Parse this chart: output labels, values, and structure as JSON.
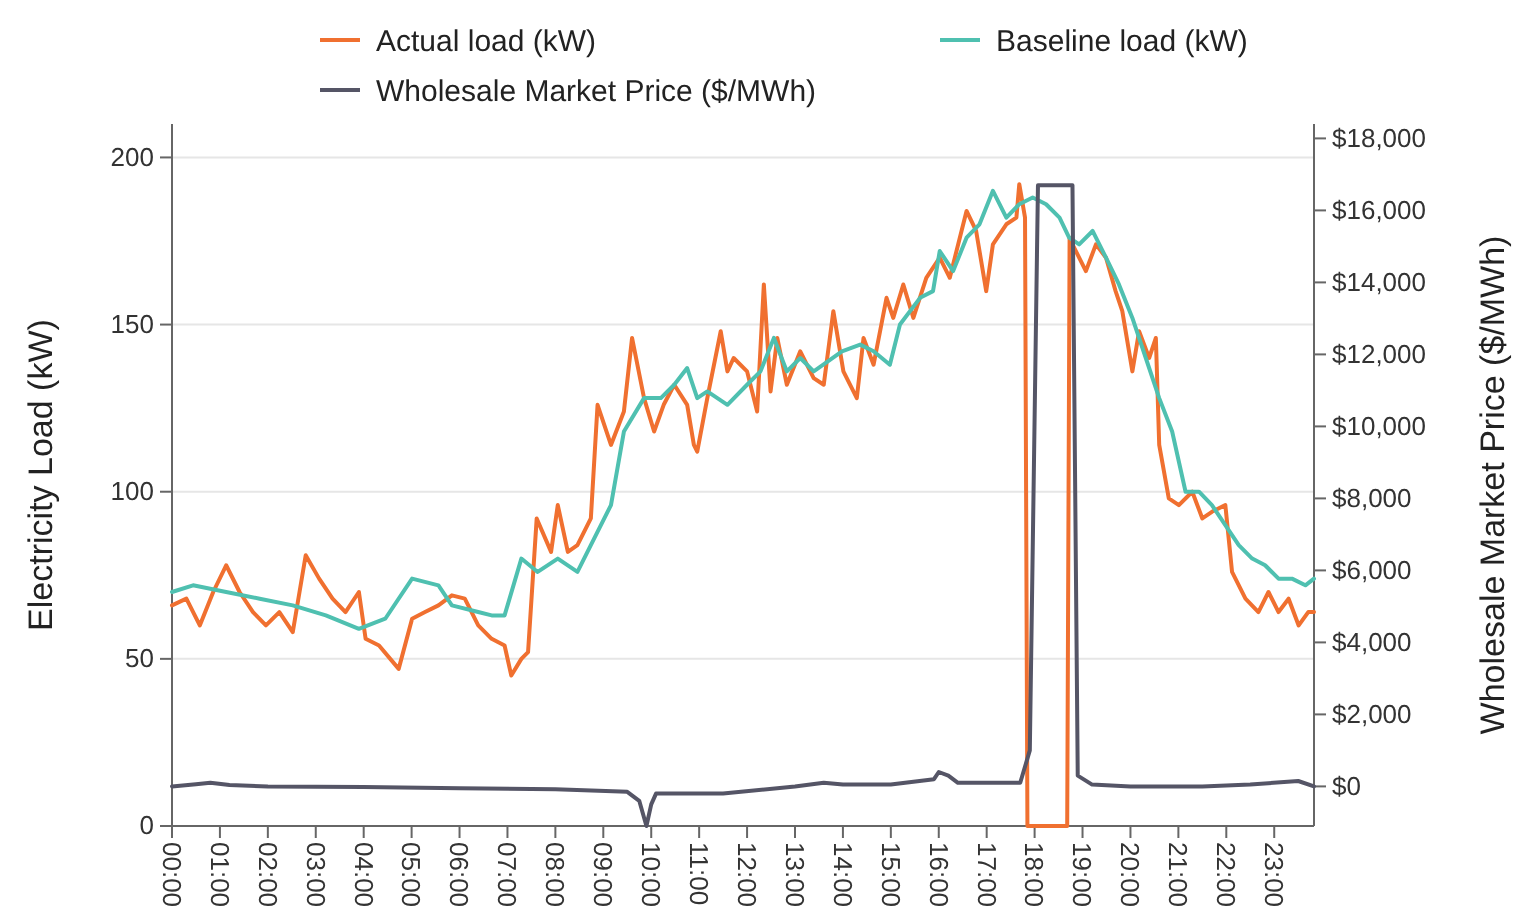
{
  "chart_data": {
    "type": "line",
    "ylabel": "Electricity Load (kW)",
    "y2label": "Wholesale Market Price ($/MWh)",
    "xlim": [
      0,
      23.83
    ],
    "xticks": [
      {
        "value": 0,
        "label": "00:00"
      },
      {
        "value": 1,
        "label": "01:00"
      },
      {
        "value": 2,
        "label": "02:00"
      },
      {
        "value": 3,
        "label": "03:00"
      },
      {
        "value": 4,
        "label": "04:00"
      },
      {
        "value": 5,
        "label": "05:00"
      },
      {
        "value": 6,
        "label": "06:00"
      },
      {
        "value": 7,
        "label": "07:00"
      },
      {
        "value": 8,
        "label": "08:00"
      },
      {
        "value": 9,
        "label": "09:00"
      },
      {
        "value": 10,
        "label": "10:00"
      },
      {
        "value": 11,
        "label": "11:00"
      },
      {
        "value": 12,
        "label": "12:00"
      },
      {
        "value": 13,
        "label": "13:00"
      },
      {
        "value": 14,
        "label": "14:00"
      },
      {
        "value": 15,
        "label": "15:00"
      },
      {
        "value": 16,
        "label": "16:00"
      },
      {
        "value": 17,
        "label": "17:00"
      },
      {
        "value": 18,
        "label": "18:00"
      },
      {
        "value": 19,
        "label": "19:00"
      },
      {
        "value": 20,
        "label": "20:00"
      },
      {
        "value": 21,
        "label": "21:00"
      },
      {
        "value": 22,
        "label": "22:00"
      },
      {
        "value": 23,
        "label": "23:00"
      }
    ],
    "ylim": [
      0,
      210
    ],
    "yticks": [
      0,
      50,
      100,
      150,
      200
    ],
    "y2lim": [
      -1100,
      18400
    ],
    "y2ticks": [
      {
        "value": 0,
        "label": "$0"
      },
      {
        "value": 2000,
        "label": "$2,000"
      },
      {
        "value": 4000,
        "label": "$4,000"
      },
      {
        "value": 6000,
        "label": "$6,000"
      },
      {
        "value": 8000,
        "label": "$8,000"
      },
      {
        "value": 10000,
        "label": "$10,000"
      },
      {
        "value": 12000,
        "label": "$12,000"
      },
      {
        "value": 14000,
        "label": "$14,000"
      },
      {
        "value": 16000,
        "label": "$16,000"
      },
      {
        "value": 18000,
        "label": "$18,000"
      }
    ],
    "grid": "y",
    "legend": "top",
    "line_style": "solid",
    "marker": "none",
    "series": [
      {
        "name": "Actual load (kW)",
        "color": "#f07030",
        "x": [
          0,
          0.3,
          0.58,
          0.86,
          1.13,
          1.41,
          1.69,
          1.96,
          2.24,
          2.52,
          2.79,
          3.07,
          3.35,
          3.62,
          3.9,
          4.04,
          4.32,
          4.73,
          5.01,
          5.28,
          5.56,
          5.84,
          6.11,
          6.39,
          6.67,
          6.94,
          7.08,
          7.29,
          7.43,
          7.61,
          7.91,
          8.05,
          8.26,
          8.46,
          8.74,
          8.88,
          9.16,
          9.43,
          9.6,
          9.85,
          10.06,
          10.26,
          10.48,
          10.75,
          10.89,
          10.96,
          11.17,
          11.45,
          11.59,
          11.72,
          12.0,
          12.21,
          12.35,
          12.49,
          12.63,
          12.83,
          13.11,
          13.39,
          13.6,
          13.8,
          14.01,
          14.29,
          14.43,
          14.64,
          14.91,
          15.05,
          15.26,
          15.47,
          15.74,
          16.02,
          16.23,
          16.37,
          16.58,
          16.78,
          16.99,
          17.13,
          17.41,
          17.62,
          17.68,
          17.8,
          17.85,
          18.68,
          18.73,
          18.79,
          19.07,
          19.28,
          19.49,
          19.69,
          19.83,
          20.04,
          20.18,
          20.39,
          20.53,
          20.6,
          20.8,
          21.01,
          21.29,
          21.5,
          21.7,
          21.98,
          22.12,
          22.4,
          22.67,
          22.88,
          23.09,
          23.3,
          23.51,
          23.71,
          23.83
        ],
        "values": [
          66,
          68,
          60,
          70,
          78,
          70,
          64,
          60,
          64,
          58,
          81,
          74,
          68,
          64,
          70,
          56,
          54,
          47,
          62,
          64,
          66,
          69,
          68,
          60,
          56,
          54,
          45,
          50,
          52,
          92,
          82,
          96,
          82,
          84,
          92,
          126,
          114,
          124,
          146,
          128,
          118,
          126,
          132,
          126,
          114,
          112,
          128,
          148,
          136,
          140,
          136,
          124,
          162,
          130,
          146,
          132,
          142,
          134,
          132,
          154,
          136,
          128,
          146,
          138,
          158,
          152,
          162,
          152,
          164,
          170,
          164,
          172,
          184,
          178,
          160,
          174,
          180,
          182,
          192,
          182,
          0,
          0,
          176,
          174,
          166,
          174,
          170,
          160,
          154,
          136,
          148,
          140,
          146,
          114,
          98,
          96,
          100,
          92,
          94,
          96,
          76,
          68,
          64,
          70,
          64,
          68,
          60,
          64,
          64
        ]
      },
      {
        "name": "Baseline load (kW)",
        "color": "#4fc0b0",
        "x": [
          0,
          0.44,
          1.13,
          1.83,
          2.52,
          3.21,
          3.9,
          4.45,
          5.01,
          5.56,
          5.84,
          6.39,
          6.67,
          6.94,
          7.29,
          7.63,
          8.05,
          8.46,
          8.74,
          9.16,
          9.43,
          9.85,
          10.2,
          10.48,
          10.75,
          10.96,
          11.17,
          11.59,
          12.0,
          12.28,
          12.56,
          12.83,
          13.11,
          13.39,
          13.59,
          13.98,
          14.36,
          14.64,
          14.98,
          15.19,
          15.61,
          15.88,
          16.02,
          16.3,
          16.58,
          16.85,
          17.13,
          17.41,
          17.68,
          17.96,
          18.24,
          18.52,
          18.72,
          18.93,
          19.21,
          19.49,
          19.76,
          20.04,
          20.32,
          20.6,
          20.87,
          21.15,
          21.43,
          21.7,
          21.98,
          22.26,
          22.54,
          22.81,
          23.09,
          23.37,
          23.65,
          23.83
        ],
        "values": [
          70,
          72,
          70,
          68,
          66,
          63,
          59,
          62,
          74,
          72,
          66,
          64,
          63,
          63,
          80,
          76,
          80,
          76,
          84,
          96,
          118,
          128,
          128,
          132,
          137,
          128,
          130,
          126,
          132,
          136,
          146,
          136,
          140,
          136,
          138,
          142,
          144,
          142,
          138,
          150,
          158,
          160,
          172,
          166,
          176,
          180,
          190,
          182,
          186,
          188,
          186,
          182,
          176,
          174,
          178,
          170,
          162,
          152,
          140,
          128,
          118,
          100,
          100,
          96,
          90,
          84,
          80,
          78,
          74,
          74,
          72,
          74
        ]
      },
      {
        "name": "Wholesale Market Price ($/MWh)",
        "color": "#555566",
        "axis": "y2",
        "x": [
          0,
          0.5,
          0.8,
          1.2,
          2,
          4,
          6,
          8,
          9.5,
          9.75,
          9.9,
          10.0,
          10.1,
          11.5,
          13,
          13.6,
          14,
          15,
          15.9,
          16.0,
          16.2,
          16.4,
          17,
          17.7,
          17.9,
          18.07,
          18.79,
          18.9,
          19.2,
          20,
          21.5,
          22.5,
          23.5,
          23.83
        ],
        "values": [
          0,
          60,
          100,
          40,
          0,
          -20,
          -50,
          -80,
          -150,
          -400,
          -1100,
          -500,
          -200,
          -200,
          0,
          100,
          50,
          50,
          200,
          400,
          300,
          100,
          100,
          100,
          1000,
          16700,
          16700,
          300,
          50,
          0,
          0,
          50,
          150,
          0
        ]
      }
    ]
  }
}
